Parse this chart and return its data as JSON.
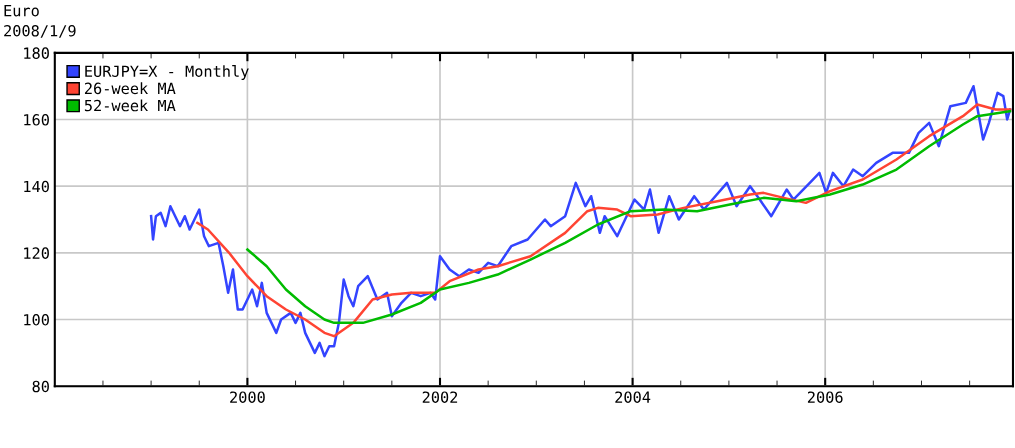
{
  "chart_data": {
    "type": "line",
    "title": "Euro",
    "subtitle": "2008/1/9",
    "xlim": [
      1998,
      2007.95
    ],
    "ylim": [
      80,
      180
    ],
    "yticks": [
      80,
      100,
      120,
      140,
      160,
      180
    ],
    "xticks": [
      {
        "value": 1998.5,
        "label": null
      },
      {
        "value": 1999,
        "label": null
      },
      {
        "value": 1999.5,
        "label": null
      },
      {
        "value": 2000,
        "label": "2000"
      },
      {
        "value": 2000.5,
        "label": null
      },
      {
        "value": 2001,
        "label": null
      },
      {
        "value": 2001.5,
        "label": null
      },
      {
        "value": 2002,
        "label": "2002"
      },
      {
        "value": 2002.5,
        "label": null
      },
      {
        "value": 2003,
        "label": null
      },
      {
        "value": 2003.5,
        "label": null
      },
      {
        "value": 2004,
        "label": "2004"
      },
      {
        "value": 2004.5,
        "label": null
      },
      {
        "value": 2005,
        "label": null
      },
      {
        "value": 2005.5,
        "label": null
      },
      {
        "value": 2006,
        "label": "2006"
      },
      {
        "value": 2006.5,
        "label": null
      },
      {
        "value": 2007,
        "label": null
      },
      {
        "value": 2007.5,
        "label": null
      }
    ],
    "grid": true,
    "legend": "top left",
    "marker": "none",
    "line_style": "solid",
    "series": [
      {
        "name": "EURJPY=X - Monthly",
        "color": "#3344ff",
        "x": [
          1999.0,
          1999.02,
          1999.05,
          1999.1,
          1999.15,
          1999.2,
          1999.3,
          1999.35,
          1999.4,
          1999.5,
          1999.55,
          1999.6,
          1999.7,
          1999.75,
          1999.8,
          1999.85,
          1999.9,
          1999.95,
          2000.05,
          2000.1,
          2000.15,
          2000.2,
          2000.3,
          2000.35,
          2000.45,
          2000.5,
          2000.55,
          2000.6,
          2000.7,
          2000.75,
          2000.8,
          2000.85,
          2000.9,
          2000.95,
          2001.0,
          2001.05,
          2001.1,
          2001.15,
          2001.25,
          2001.35,
          2001.45,
          2001.5,
          2001.6,
          2001.7,
          2001.8,
          2001.9,
          2001.95,
          2002.0,
          2002.1,
          2002.2,
          2002.3,
          2002.4,
          2002.5,
          2002.6,
          2002.74,
          2002.91,
          2003.09,
          2003.15,
          2003.3,
          2003.41,
          2003.51,
          2003.57,
          2003.66,
          2003.71,
          2003.84,
          2004.02,
          2004.12,
          2004.18,
          2004.27,
          2004.38,
          2004.48,
          2004.64,
          2004.74,
          2004.98,
          2005.08,
          2005.22,
          2005.32,
          2005.44,
          2005.6,
          2005.67,
          2005.84,
          2005.94,
          2006.01,
          2006.08,
          2006.19,
          2006.29,
          2006.39,
          2006.53,
          2006.7,
          2006.87,
          2006.97,
          2007.08,
          2007.18,
          2007.3,
          2007.46,
          2007.54,
          2007.64,
          2007.7,
          2007.79,
          2007.85,
          2007.89,
          2007.92
        ],
        "values": [
          131,
          124,
          131,
          132,
          128,
          134,
          128,
          131,
          127,
          133,
          125,
          122,
          123,
          116,
          108,
          115,
          103,
          103,
          109,
          104,
          111,
          102,
          96,
          100,
          102,
          99,
          102,
          96,
          90,
          93,
          89,
          92,
          92,
          99,
          112,
          107,
          104,
          110,
          113,
          106,
          108,
          101,
          105,
          108,
          107,
          108,
          106,
          119,
          115,
          113,
          115,
          114,
          117,
          116,
          122,
          124,
          130,
          128,
          131,
          141,
          134,
          137,
          126,
          131,
          125,
          136,
          133,
          139,
          126,
          137,
          130,
          137,
          133,
          141,
          134,
          140,
          136,
          131,
          139,
          136,
          141,
          144,
          138,
          144,
          140,
          145,
          143,
          147,
          150,
          150,
          156,
          159,
          152,
          164,
          165,
          170,
          154,
          159,
          168,
          167,
          160,
          163
        ]
      },
      {
        "name": "26-week MA",
        "color": "#ff4433",
        "x": [
          1999.48,
          1999.59,
          1999.81,
          2000.0,
          2000.2,
          2000.4,
          2000.6,
          2000.8,
          2000.9,
          2001.1,
          2001.3,
          2001.5,
          2001.7,
          2001.95,
          2002.1,
          2002.4,
          2002.6,
          2002.94,
          2003.3,
          2003.53,
          2003.64,
          2003.84,
          2003.98,
          2004.26,
          2004.53,
          2004.88,
          2005.22,
          2005.36,
          2005.57,
          2005.8,
          2006.05,
          2006.39,
          2006.74,
          2007.08,
          2007.43,
          2007.58,
          2007.77,
          2007.92
        ],
        "values": [
          129,
          127,
          120,
          113,
          107,
          103,
          100,
          96,
          95,
          99,
          106,
          107.5,
          108,
          108,
          111.5,
          115,
          116,
          119,
          126,
          132.5,
          133.5,
          133,
          131,
          131.5,
          133.5,
          135.5,
          137.5,
          138,
          136.5,
          135,
          138.5,
          142,
          148,
          155,
          161,
          164.5,
          163,
          163
        ]
      },
      {
        "name": "52-week MA",
        "color": "#00bb00",
        "x": [
          2000.0,
          2000.2,
          2000.4,
          2000.6,
          2000.8,
          2000.9,
          2001.2,
          2001.5,
          2001.8,
          2002.0,
          2002.3,
          2002.6,
          2002.94,
          2003.3,
          2003.64,
          2003.98,
          2004.33,
          2004.67,
          2005.01,
          2005.36,
          2005.7,
          2006.05,
          2006.39,
          2006.74,
          2007.08,
          2007.43,
          2007.58,
          2007.92
        ],
        "values": [
          121,
          116,
          109,
          104,
          100,
          99,
          99,
          101.5,
          105,
          109,
          111,
          113.5,
          118,
          123,
          128.5,
          132.5,
          133,
          132.5,
          134.5,
          136.5,
          135.5,
          137.5,
          140.5,
          145,
          152,
          158.5,
          161,
          162.5
        ]
      }
    ]
  }
}
